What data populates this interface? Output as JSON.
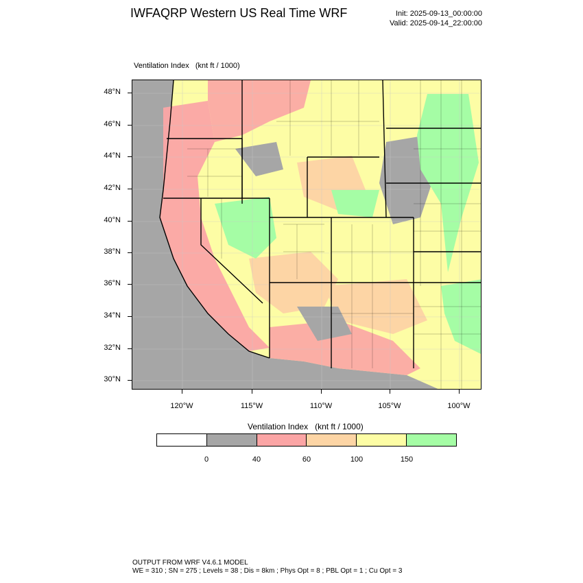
{
  "header": {
    "title": "IWFAQRP Western US Real Time WRF",
    "init": "Init: 2025-09-13_00:00:00",
    "valid": "Valid: 2025-09-14_22:00:00"
  },
  "map": {
    "field_label": "Ventilation Index   (knt ft / 1000)",
    "lat_labels": [
      "48°N",
      "46°N",
      "44°N",
      "42°N",
      "40°N",
      "38°N",
      "36°N",
      "34°N",
      "32°N",
      "30°N"
    ],
    "lon_labels": [
      "120°W",
      "115°W",
      "110°W",
      "105°W",
      "100°W"
    ]
  },
  "colorbar": {
    "title": "Ventilation Index   (knt ft / 1000)",
    "bins": [
      {
        "color": "#ffffff"
      },
      {
        "color": "#a6a6a6"
      },
      {
        "color": "#fba5a5"
      },
      {
        "color": "#fdd5a5"
      },
      {
        "color": "#fdfda5"
      },
      {
        "color": "#a5fda5"
      }
    ],
    "labels": [
      "0",
      "40",
      "60",
      "100",
      "150"
    ]
  },
  "colors": {
    "gray": "#a6a6a6",
    "pink": "#fba5a5",
    "orange": "#fdd5a5",
    "yellow": "#fdfda5",
    "green": "#a5fda5",
    "ocean": "#a6a6a6"
  },
  "footer": {
    "line1": "OUTPUT FROM WRF V4.6.1 MODEL",
    "line2": "WE = 310 ; SN = 275 ; Levels = 38 ; Dis = 8km ; Phys Opt = 8 ; PBL Opt = 1 ; Cu Opt = 3"
  }
}
